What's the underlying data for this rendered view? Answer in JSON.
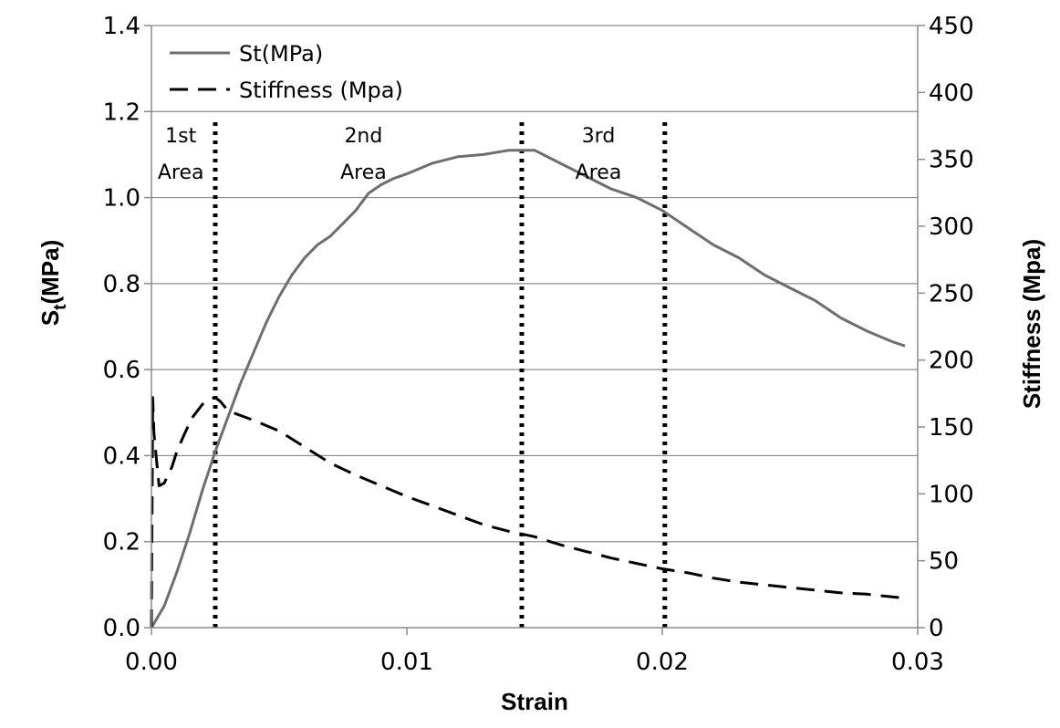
{
  "chart_data": {
    "type": "line",
    "title": "",
    "xlabel": "Strain",
    "ylabel_main": "S",
    "ylabel_sub": "t",
    "ylabel_rest": "(MPa)",
    "y2label": "Stiffness (Mpa)",
    "xlim": [
      0,
      0.03
    ],
    "ylim": [
      0,
      1.4
    ],
    "y2lim": [
      0,
      450
    ],
    "x_ticks": [
      0,
      0.01,
      0.02,
      0.03
    ],
    "x_tick_labels": [
      "0.00",
      "0.01",
      "0.02",
      "0.03"
    ],
    "y_ticks": [
      0,
      0.2,
      0.4,
      0.6,
      0.8,
      1.0,
      1.2,
      1.4
    ],
    "y_tick_labels": [
      "0.0",
      "0.2",
      "0.4",
      "0.6",
      "0.8",
      "1.0",
      "1.2",
      "1.4"
    ],
    "y2_ticks": [
      0,
      50,
      100,
      150,
      200,
      250,
      300,
      350,
      400,
      450
    ],
    "y2_tick_labels": [
      "0",
      "50",
      "100",
      "150",
      "200",
      "250",
      "300",
      "350",
      "400",
      "450"
    ],
    "grid": "horizontal",
    "legend": "top-left",
    "series": [
      {
        "name": "St(MPa)",
        "axis": "left",
        "style": "solid",
        "color": "#6e6e6e",
        "x": [
          0,
          0.0005,
          0.001,
          0.0015,
          0.002,
          0.0025,
          0.003,
          0.0035,
          0.004,
          0.0045,
          0.005,
          0.0055,
          0.006,
          0.0065,
          0.007,
          0.0075,
          0.008,
          0.0085,
          0.009,
          0.0095,
          0.01,
          0.011,
          0.012,
          0.013,
          0.014,
          0.0145,
          0.015,
          0.016,
          0.017,
          0.018,
          0.019,
          0.02,
          0.021,
          0.022,
          0.023,
          0.024,
          0.025,
          0.026,
          0.027,
          0.028,
          0.029,
          0.0295
        ],
        "values": [
          0.0,
          0.05,
          0.13,
          0.22,
          0.32,
          0.41,
          0.49,
          0.57,
          0.64,
          0.71,
          0.77,
          0.82,
          0.86,
          0.89,
          0.91,
          0.94,
          0.97,
          1.01,
          1.03,
          1.045,
          1.055,
          1.08,
          1.095,
          1.1,
          1.11,
          1.11,
          1.11,
          1.08,
          1.05,
          1.02,
          1.0,
          0.97,
          0.93,
          0.89,
          0.86,
          0.82,
          0.79,
          0.76,
          0.72,
          0.69,
          0.665,
          0.655
        ]
      },
      {
        "name": "Stiffness (Mpa)",
        "axis": "right",
        "style": "dashed",
        "color": "#000000",
        "x": [
          0,
          5e-05,
          0.0001,
          0.0002,
          0.0003,
          0.0005,
          0.0008,
          0.001,
          0.0013,
          0.0016,
          0.002,
          0.0023,
          0.0025,
          0.0027,
          0.003,
          0.004,
          0.005,
          0.006,
          0.007,
          0.008,
          0.009,
          0.01,
          0.011,
          0.012,
          0.013,
          0.014,
          0.015,
          0.016,
          0.017,
          0.018,
          0.019,
          0.02,
          0.021,
          0.022,
          0.023,
          0.024,
          0.025,
          0.026,
          0.027,
          0.028,
          0.029,
          0.0295
        ],
        "values": [
          0,
          172,
          145,
          125,
          106,
          108,
          120,
          132,
          145,
          157,
          167,
          171,
          172,
          169,
          162,
          155,
          147,
          135,
          123,
          114,
          106,
          98,
          91,
          84,
          77,
          72,
          68,
          62,
          57,
          52,
          48,
          44,
          41,
          37,
          34,
          32,
          30,
          28,
          26,
          25,
          23,
          22
        ]
      }
    ],
    "dividers": [
      0.0025,
      0.0145,
      0.0201
    ],
    "annotations": [
      {
        "lines": [
          "1st",
          "Area"
        ],
        "x": 0.00115
      },
      {
        "lines": [
          "2nd",
          "Area"
        ],
        "x": 0.0083
      },
      {
        "lines": [
          "3rd",
          "Area"
        ],
        "x": 0.0175
      }
    ]
  }
}
